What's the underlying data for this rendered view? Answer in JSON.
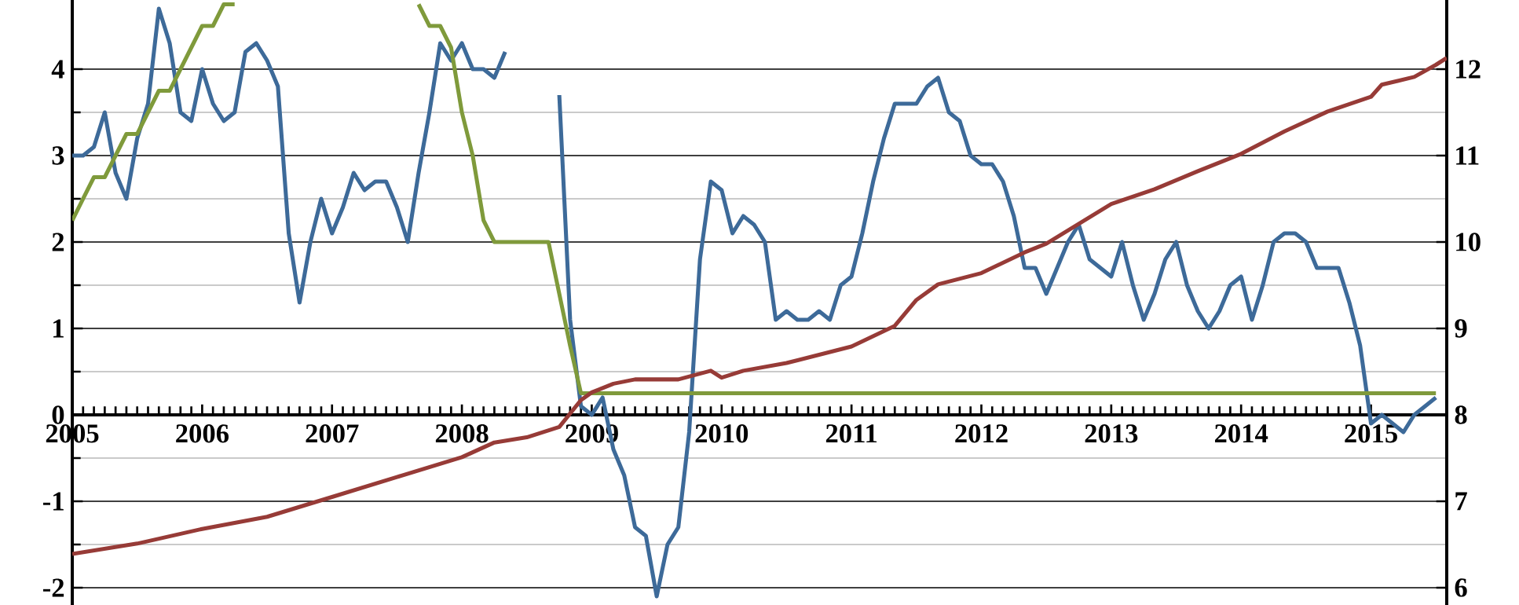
{
  "chart_data": {
    "type": "line",
    "x": [
      "2005-01",
      "2005-02",
      "2005-03",
      "2005-04",
      "2005-05",
      "2005-06",
      "2005-07",
      "2005-08",
      "2005-09",
      "2005-10",
      "2005-11",
      "2005-12",
      "2006-01",
      "2006-02",
      "2006-03",
      "2006-04",
      "2006-05",
      "2006-06",
      "2006-07",
      "2006-08",
      "2006-09",
      "2006-10",
      "2006-11",
      "2006-12",
      "2007-01",
      "2007-02",
      "2007-03",
      "2007-04",
      "2007-05",
      "2007-06",
      "2007-07",
      "2007-08",
      "2007-09",
      "2007-10",
      "2007-11",
      "2007-12",
      "2008-01",
      "2008-02",
      "2008-03",
      "2008-04",
      "2008-05",
      "2008-06",
      "2008-07",
      "2008-08",
      "2008-09",
      "2008-10",
      "2008-11",
      "2008-12",
      "2009-01",
      "2009-02",
      "2009-03",
      "2009-04",
      "2009-05",
      "2009-06",
      "2009-07",
      "2009-08",
      "2009-09",
      "2009-10",
      "2009-11",
      "2009-12",
      "2010-01",
      "2010-02",
      "2010-03",
      "2010-04",
      "2010-05",
      "2010-06",
      "2010-07",
      "2010-08",
      "2010-09",
      "2010-10",
      "2010-11",
      "2010-12",
      "2011-01",
      "2011-02",
      "2011-03",
      "2011-04",
      "2011-05",
      "2011-06",
      "2011-07",
      "2011-08",
      "2011-09",
      "2011-10",
      "2011-11",
      "2011-12",
      "2012-01",
      "2012-02",
      "2012-03",
      "2012-04",
      "2012-05",
      "2012-06",
      "2012-07",
      "2012-08",
      "2012-09",
      "2012-10",
      "2012-11",
      "2012-12",
      "2013-01",
      "2013-02",
      "2013-03",
      "2013-04",
      "2013-05",
      "2013-06",
      "2013-07",
      "2013-08",
      "2013-09",
      "2013-10",
      "2013-11",
      "2013-12",
      "2014-01",
      "2014-02",
      "2014-03",
      "2014-04",
      "2014-05",
      "2014-06",
      "2014-07",
      "2014-08",
      "2014-09",
      "2014-10",
      "2014-11",
      "2014-12",
      "2015-01",
      "2015-02",
      "2015-03",
      "2015-04",
      "2015-05",
      "2015-06",
      "2015-07"
    ],
    "series": [
      {
        "color": "#3d6a99",
        "values": [
          3.0,
          3.0,
          3.1,
          3.5,
          2.8,
          2.5,
          3.2,
          3.6,
          4.7,
          4.3,
          3.5,
          3.4,
          4.0,
          3.6,
          3.4,
          3.5,
          4.2,
          4.3,
          4.1,
          3.8,
          2.1,
          1.3,
          2.0,
          2.5,
          2.1,
          2.4,
          2.8,
          2.6,
          2.7,
          2.7,
          2.4,
          2.0,
          2.8,
          3.5,
          4.3,
          4.1,
          4.3,
          4.0,
          4.0,
          3.9,
          4.2,
          null,
          null,
          null,
          null,
          3.7,
          1.1,
          0.1,
          0.0,
          0.2,
          -0.4,
          -0.7,
          -1.3,
          -1.4,
          -2.1,
          -1.5,
          -1.3,
          -0.2,
          1.8,
          2.7,
          2.6,
          2.1,
          2.3,
          2.2,
          2.0,
          1.1,
          1.2,
          1.1,
          1.1,
          1.2,
          1.1,
          1.5,
          1.6,
          2.1,
          2.7,
          3.2,
          3.6,
          3.6,
          3.6,
          3.8,
          3.9,
          3.5,
          3.4,
          3.0,
          2.9,
          2.9,
          2.7,
          2.3,
          1.7,
          1.7,
          1.4,
          1.7,
          2.0,
          2.2,
          1.8,
          1.7,
          1.6,
          2.0,
          1.5,
          1.1,
          1.4,
          1.8,
          2.0,
          1.5,
          1.2,
          1.0,
          1.2,
          1.5,
          1.6,
          1.1,
          1.5,
          2.0,
          2.1,
          2.1,
          2.0,
          1.7,
          1.7,
          1.7,
          1.3,
          0.8,
          -0.1,
          0.0,
          -0.1,
          -0.2,
          0.0,
          0.1,
          0.2
        ]
      },
      {
        "color": "#7f9a3b",
        "values": [
          2.25,
          2.5,
          2.75,
          2.75,
          3.0,
          3.25,
          3.25,
          3.5,
          3.75,
          3.75,
          4.0,
          4.25,
          4.5,
          4.5,
          4.75,
          4.75,
          null,
          null,
          null,
          null,
          null,
          null,
          null,
          null,
          null,
          null,
          null,
          null,
          null,
          null,
          null,
          null,
          4.75,
          4.5,
          4.5,
          4.25,
          3.5,
          3.0,
          2.25,
          2.0,
          2.0,
          2.0,
          2.0,
          2.0,
          2.0,
          1.4,
          0.8,
          0.25,
          0.25,
          0.25,
          0.25,
          0.25,
          0.25,
          0.25,
          0.25,
          0.25,
          0.25,
          0.25,
          0.25,
          0.25,
          0.25,
          0.25,
          0.25,
          0.25,
          0.25,
          0.25,
          0.25,
          0.25,
          0.25,
          0.25,
          0.25,
          0.25,
          0.25,
          0.25,
          0.25,
          0.25,
          0.25,
          0.25,
          0.25,
          0.25,
          0.25,
          0.25,
          0.25,
          0.25,
          0.25,
          0.25,
          0.25,
          0.25,
          0.25,
          0.25,
          0.25,
          0.25,
          0.25,
          0.25,
          0.25,
          0.25,
          0.25,
          0.25,
          0.25,
          0.25,
          0.25,
          0.25,
          0.25,
          0.25,
          0.25,
          0.25,
          0.25,
          0.25,
          0.25,
          0.25,
          0.25,
          0.25,
          0.25,
          0.25,
          0.25,
          0.25,
          0.25,
          0.25,
          0.25,
          0.25,
          0.25,
          0.25,
          0.25,
          0.25,
          0.25,
          0.25,
          0.25
        ]
      },
      {
        "color": "#973b37",
        "axis": "y2",
        "x": [
          "2005-01",
          "2005-07",
          "2006-01",
          "2006-07",
          "2007-01",
          "2007-07",
          "2008-01",
          "2008-04",
          "2008-07",
          "2008-10",
          "2008-12",
          "2009-01",
          "2009-03",
          "2009-05",
          "2009-09",
          "2009-12",
          "2010-01",
          "2010-03",
          "2010-07",
          "2011-01",
          "2011-05",
          "2011-07",
          "2011-09",
          "2012-01",
          "2012-05",
          "2012-07",
          "2013-01",
          "2013-05",
          "2013-09",
          "2014-01",
          "2014-05",
          "2014-09",
          "2015-01",
          "2015-02",
          "2015-05",
          "2015-07",
          "2015-08"
        ],
        "values": [
          6.39,
          6.51,
          6.68,
          6.82,
          7.05,
          7.28,
          7.51,
          7.68,
          7.74,
          7.86,
          8.17,
          8.26,
          8.36,
          8.41,
          8.41,
          8.51,
          8.43,
          8.51,
          8.6,
          8.79,
          9.03,
          9.33,
          9.51,
          9.64,
          9.88,
          9.98,
          10.44,
          10.61,
          10.82,
          11.02,
          11.28,
          11.51,
          11.68,
          11.82,
          11.91,
          12.05,
          12.13
        ]
      }
    ],
    "xlim": [
      "2005-01",
      "2015-08"
    ],
    "xticks": [
      "2005",
      "2006",
      "2007",
      "2008",
      "2009",
      "2010",
      "2011",
      "2012",
      "2013",
      "2014",
      "2015"
    ],
    "ylim": [
      -2.2,
      4.8
    ],
    "yticks": [
      -2,
      -1,
      0,
      1,
      2,
      3,
      4
    ],
    "y2lim": [
      5.8,
      12.8
    ],
    "y2ticks": [
      6,
      7,
      8,
      9,
      10,
      11,
      12
    ],
    "grid": "y"
  }
}
